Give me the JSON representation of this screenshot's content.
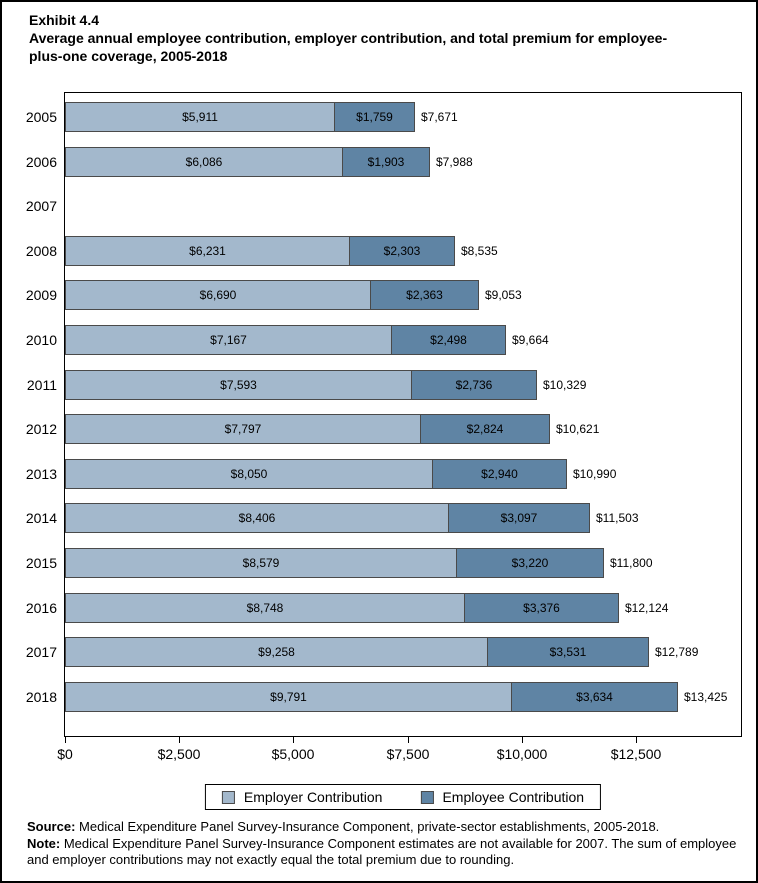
{
  "header": {
    "exhibit": "Exhibit 4.4",
    "title": "Average annual employee contribution, employer contribution, and total premium for employee-plus-one coverage, 2005-2018"
  },
  "chart_data": {
    "type": "bar",
    "orientation": "horizontal",
    "stacked": true,
    "title": "Average annual employee contribution, employer contribution, and total premium for employee-plus-one coverage, 2005-2018",
    "categories": [
      "2005",
      "2006",
      "2007",
      "2008",
      "2009",
      "2010",
      "2011",
      "2012",
      "2013",
      "2014",
      "2015",
      "2016",
      "2017",
      "2018"
    ],
    "series": [
      {
        "name": "Employer Contribution",
        "color": "#a3b8cc",
        "values": [
          5911,
          6086,
          null,
          6231,
          6690,
          7167,
          7593,
          7797,
          8050,
          8406,
          8579,
          8748,
          9258,
          9791
        ]
      },
      {
        "name": "Employee Contribution",
        "color": "#5f84a4",
        "values": [
          1759,
          1903,
          null,
          2303,
          2363,
          2498,
          2736,
          2824,
          2940,
          3097,
          3220,
          3376,
          3531,
          3634
        ]
      }
    ],
    "totals": [
      7671,
      7988,
      null,
      8535,
      9053,
      9664,
      10329,
      10621,
      10990,
      11503,
      11800,
      12124,
      12789,
      13425
    ],
    "missing_year": "2007",
    "xlabel": "",
    "ylabel": "",
    "xlim": [
      0,
      14800
    ],
    "xticks": [
      0,
      2500,
      5000,
      7500,
      10000,
      12500
    ],
    "xtick_labels": [
      "$0",
      "$2,500",
      "$5,000",
      "$7,500",
      "$10,000",
      "$12,500"
    ],
    "grid": false,
    "legend_position": "bottom",
    "bar_border_color": "#4a4a4a"
  },
  "footer": {
    "source_label": "Source:",
    "source_text": "Medical Expenditure Panel Survey-Insurance Component, private-sector establishments, 2005-2018.",
    "note_label": "Note:",
    "note_text": "Medical Expenditure Panel Survey-Insurance Component estimates are not available for 2007. The sum of employee and employer contributions may not exactly equal the total premium due to rounding."
  }
}
